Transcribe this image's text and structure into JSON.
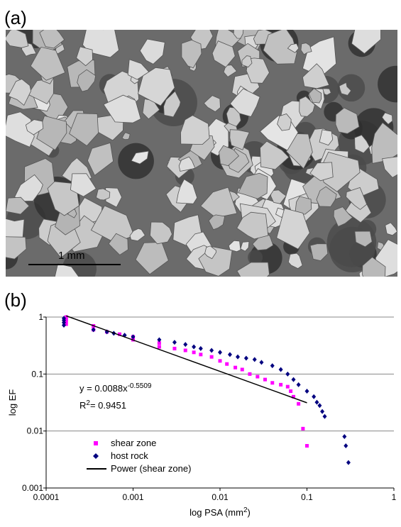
{
  "panel_a": {
    "label": "(a)",
    "scale_bar": "1 mm"
  },
  "chart_data": {
    "type": "scatter",
    "panel_label": "(b)",
    "xlabel": {
      "text": "log PSA (mm",
      "sup": "2",
      "end": ")"
    },
    "ylabel": "log EF",
    "xscale": "log",
    "yscale": "log",
    "xlim": [
      0.0001,
      1
    ],
    "ylim": [
      0.001,
      1
    ],
    "xticks": [
      0.0001,
      0.001,
      0.01,
      0.1,
      1
    ],
    "yticks": [
      0.001,
      0.01,
      0.1,
      1
    ],
    "grid": true,
    "legend": "lower left",
    "equation": {
      "text": "y = 0.0088x",
      "sup": "-0.5509"
    },
    "r_squared": {
      "text": "R",
      "sup": "2",
      "end": "= 0.9451"
    },
    "series": [
      {
        "name": "shear zone",
        "color": "#ff00ff",
        "marker": "square",
        "x": [
          0.00017,
          0.00017,
          0.00017,
          0.00017,
          0.00035,
          0.00035,
          0.0005,
          0.0007,
          0.001,
          0.001,
          0.002,
          0.002,
          0.003,
          0.004,
          0.005,
          0.006,
          0.008,
          0.01,
          0.012,
          0.015,
          0.018,
          0.022,
          0.027,
          0.033,
          0.04,
          0.05,
          0.06,
          0.065,
          0.07,
          0.08,
          0.09,
          0.1
        ],
        "values": [
          1,
          0.9,
          0.85,
          0.75,
          0.7,
          0.6,
          0.55,
          0.5,
          0.45,
          0.4,
          0.35,
          0.3,
          0.28,
          0.26,
          0.24,
          0.22,
          0.2,
          0.17,
          0.15,
          0.13,
          0.12,
          0.1,
          0.09,
          0.08,
          0.07,
          0.065,
          0.06,
          0.05,
          0.04,
          0.03,
          0.011,
          0.0055
        ]
      },
      {
        "name": "host rock",
        "color": "#000080",
        "marker": "diamond",
        "x": [
          0.00016,
          0.00016,
          0.00016,
          0.00016,
          0.00035,
          0.0005,
          0.0006,
          0.0008,
          0.001,
          0.002,
          0.003,
          0.004,
          0.005,
          0.006,
          0.008,
          0.01,
          0.013,
          0.016,
          0.02,
          0.025,
          0.03,
          0.04,
          0.05,
          0.06,
          0.07,
          0.08,
          0.1,
          0.12,
          0.13,
          0.14,
          0.15,
          0.16,
          0.27,
          0.28,
          0.3
        ],
        "values": [
          0.95,
          0.88,
          0.8,
          0.72,
          0.6,
          0.55,
          0.52,
          0.48,
          0.45,
          0.4,
          0.36,
          0.33,
          0.3,
          0.28,
          0.26,
          0.24,
          0.22,
          0.2,
          0.19,
          0.18,
          0.16,
          0.14,
          0.12,
          0.1,
          0.08,
          0.065,
          0.05,
          0.04,
          0.032,
          0.028,
          0.022,
          0.018,
          0.008,
          0.0055,
          0.0028
        ]
      },
      {
        "name": "Power (shear zone)",
        "color": "#000000",
        "marker": "line",
        "x": [
          0.00017,
          0.1
        ],
        "values": [
          1.05,
          0.0313
        ]
      }
    ]
  }
}
